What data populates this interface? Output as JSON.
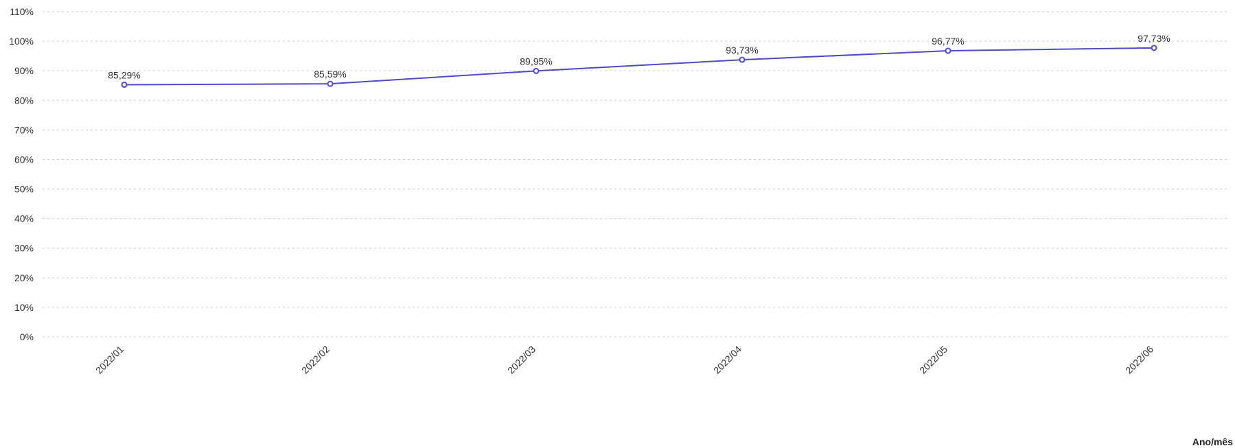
{
  "chart_data": {
    "type": "line",
    "title": "",
    "xlabel": "Ano/mês",
    "ylabel": "",
    "categories": [
      "2022/01",
      "2022/02",
      "2022/03",
      "2022/04",
      "2022/05",
      "2022/06"
    ],
    "series": [
      {
        "values": [
          85.29,
          85.59,
          89.95,
          93.73,
          96.77,
          97.73
        ],
        "data_labels": [
          "85,29%",
          "85,59%",
          "89,95%",
          "93,73%",
          "96,77%",
          "97,73%"
        ],
        "color": "#4b4bc8"
      }
    ],
    "ylim": [
      0,
      110
    ],
    "yticks": [
      "0%",
      "10%",
      "20%",
      "30%",
      "40%",
      "50%",
      "60%",
      "70%",
      "80%",
      "90%",
      "100%",
      "110%"
    ],
    "grid": true,
    "legend": "none",
    "colors": {
      "gridline": "#cccccc",
      "line": "#4b4bc8",
      "text": "#333333"
    }
  }
}
